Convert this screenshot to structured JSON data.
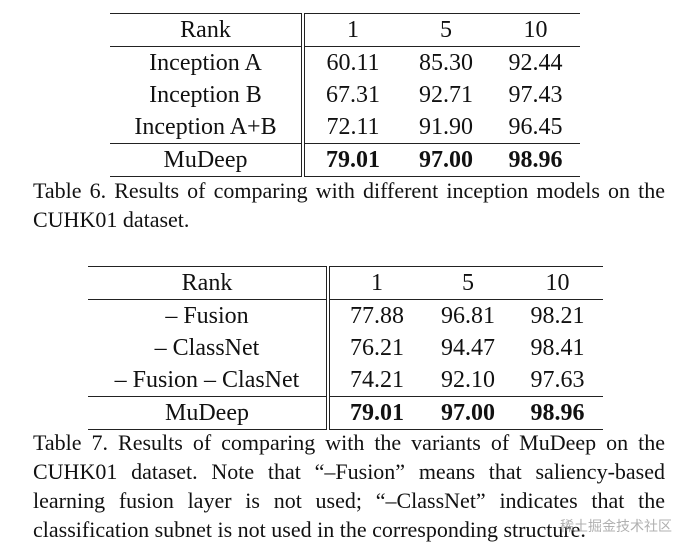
{
  "tables": [
    {
      "header": [
        "Rank",
        "1",
        "5",
        "10"
      ],
      "rows": [
        [
          "Inception A",
          "60.11",
          "85.30",
          "92.44"
        ],
        [
          "Inception B",
          "67.31",
          "92.71",
          "97.43"
        ],
        [
          "Inception A+B",
          "72.11",
          "91.90",
          "96.45"
        ],
        [
          "MuDeep",
          "79.01",
          "97.00",
          "98.96"
        ]
      ],
      "caption": "Table 6. Results of comparing with different inception models on the CUHK01 dataset."
    },
    {
      "header": [
        "Rank",
        "1",
        "5",
        "10"
      ],
      "rows": [
        [
          "– Fusion",
          "77.88",
          "96.81",
          "98.21"
        ],
        [
          "– ClassNet",
          "76.21",
          "94.47",
          "98.41"
        ],
        [
          "– Fusion – ClasNet",
          "74.21",
          "92.10",
          "97.63"
        ],
        [
          "MuDeep",
          "79.01",
          "97.00",
          "98.96"
        ]
      ],
      "caption": "Table 7. Results of comparing with the variants of MuDeep on the CUHK01 dataset. Note that “–Fusion” means that saliency-based learning fusion layer is not used; “–ClassNet” indicates that the classification subnet is not used in the corresponding structure."
    }
  ],
  "watermark": "稀土掘金技术社区"
}
